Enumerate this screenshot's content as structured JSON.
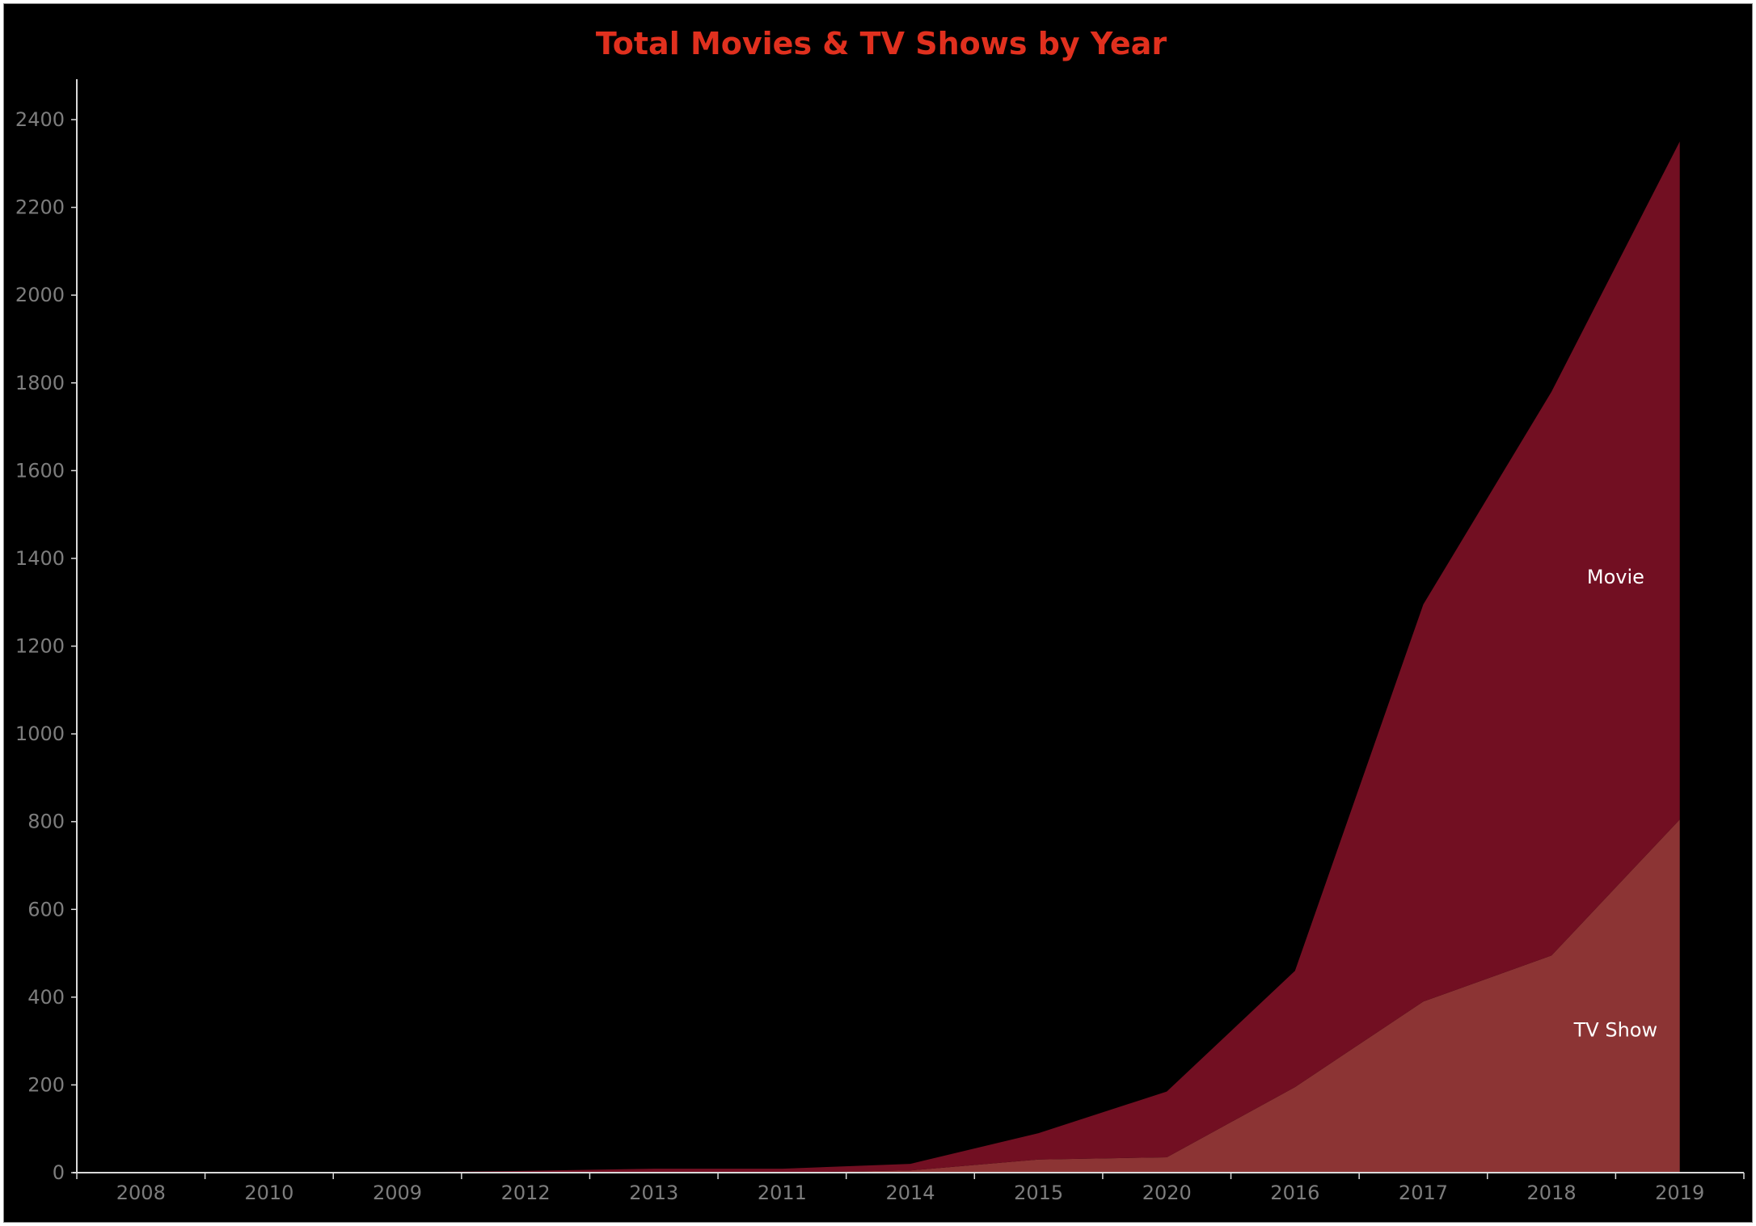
{
  "chart_data": {
    "type": "area",
    "stacked": true,
    "title": "Total Movies & TV Shows by Year",
    "xlabel": "",
    "ylabel": "",
    "categories": [
      "2008",
      "2010",
      "2009",
      "2012",
      "2013",
      "2011",
      "2014",
      "2015",
      "2020",
      "2016",
      "2017",
      "2018",
      "2019"
    ],
    "series": [
      {
        "name": "TV Show",
        "color": "#8c3434",
        "values": [
          0,
          0,
          0,
          0,
          0,
          0,
          5,
          30,
          35,
          195,
          390,
          495,
          805
        ]
      },
      {
        "name": "Movie",
        "color": "#720f22",
        "values": [
          0,
          0,
          1,
          4,
          9,
          9,
          15,
          60,
          150,
          265,
          905,
          1285,
          1545
        ]
      }
    ],
    "yticks": [
      0,
      200,
      400,
      600,
      800,
      1000,
      1200,
      1400,
      1600,
      1800,
      2000,
      2200,
      2400
    ],
    "ylim": [
      0,
      2470
    ],
    "grid": false,
    "legend": "inline"
  },
  "colors": {
    "background": "#000000",
    "title": "#e0301e",
    "axis": "#d9d9d9",
    "tick_text": "#7d7d7d",
    "series_label_text": "#ffffff"
  }
}
